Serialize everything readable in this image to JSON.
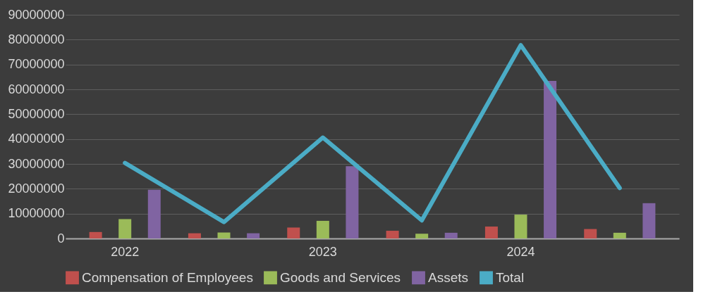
{
  "chart_data": {
    "type": "bar",
    "categories": [
      "2022",
      null,
      "2023",
      null,
      "2024",
      null
    ],
    "series": [
      {
        "name": "Compensation of Employees",
        "color": "#c0504d",
        "values": [
          2600000,
          2100000,
          4400000,
          3100000,
          4800000,
          3800000
        ]
      },
      {
        "name": "Goods and Services",
        "color": "#9bbb59",
        "values": [
          7800000,
          2400000,
          7100000,
          1900000,
          9600000,
          2300000
        ]
      },
      {
        "name": "Assets",
        "color": "#8064a2",
        "values": [
          19600000,
          2100000,
          29100000,
          2300000,
          63400000,
          14200000
        ]
      },
      {
        "name": "Total",
        "type": "line",
        "color": "#4bacc6",
        "values": [
          30400000,
          6600000,
          40600000,
          7300000,
          77800000,
          20300000
        ]
      }
    ],
    "ylim": [
      0,
      90000000
    ],
    "yticks": [
      0,
      10000000,
      20000000,
      30000000,
      40000000,
      50000000,
      60000000,
      70000000,
      80000000,
      90000000
    ],
    "grid": "y",
    "legend": "bottom"
  }
}
